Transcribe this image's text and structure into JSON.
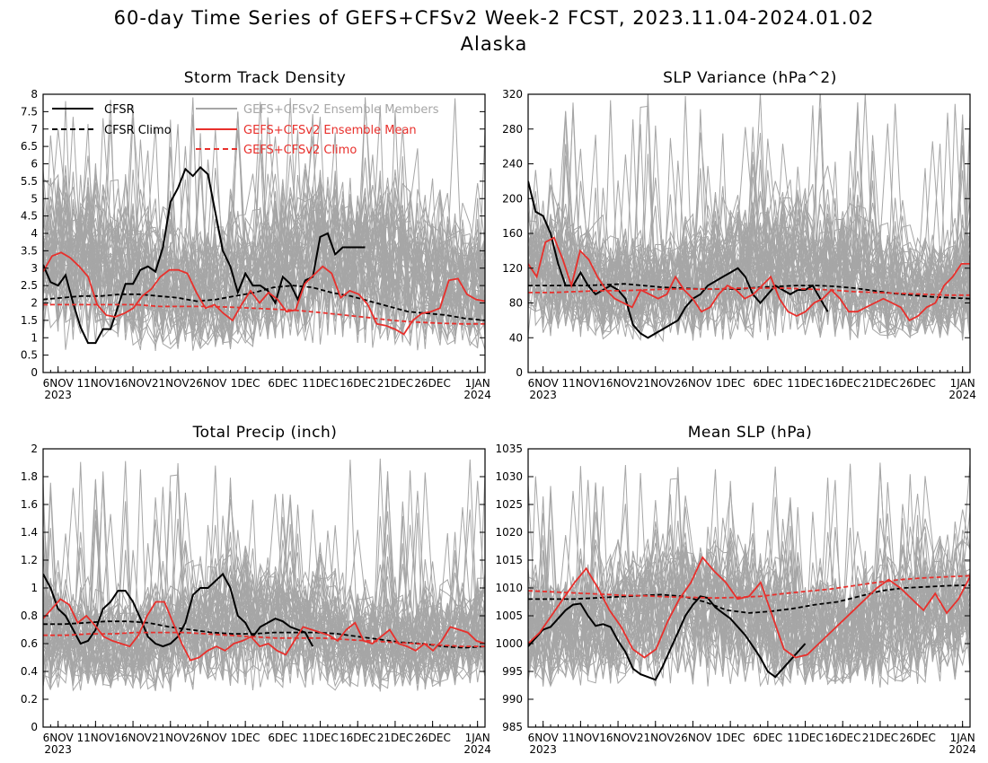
{
  "figure": {
    "title": "60-day Time Series of GEFS+CFSv2 Week-2 FCST, 2023.11.04-2024.01.02",
    "subtitle": "Alaska"
  },
  "colors": {
    "cfsr": "#000000",
    "members": "#a6a6a6",
    "mean": "#e8302c"
  },
  "legend": {
    "cfsr": "CFSR",
    "cfsr_climo": "CFSR Climo",
    "members": "GEFS+CFSv2 Ensemble Members",
    "mean": "GEFS+CFSv2 Ensemble Mean",
    "model_climo": "GEFS+CFSv2 Climo"
  },
  "x_ticks": [
    {
      "day": 2,
      "label": "6NOV",
      "sub": "2023"
    },
    {
      "day": 7,
      "label": "11NOV",
      "sub": ""
    },
    {
      "day": 12,
      "label": "16NOV",
      "sub": ""
    },
    {
      "day": 17,
      "label": "21NOV",
      "sub": ""
    },
    {
      "day": 22,
      "label": "26NOV",
      "sub": ""
    },
    {
      "day": 27,
      "label": "1DEC",
      "sub": ""
    },
    {
      "day": 32,
      "label": "6DEC",
      "sub": ""
    },
    {
      "day": 37,
      "label": "11DEC",
      "sub": ""
    },
    {
      "day": 42,
      "label": "16DEC",
      "sub": ""
    },
    {
      "day": 47,
      "label": "21DEC",
      "sub": ""
    },
    {
      "day": 52,
      "label": "26DEC",
      "sub": ""
    },
    {
      "day": 58,
      "label": "1JAN",
      "sub": "2024"
    }
  ],
  "chart_data": [
    {
      "type": "line",
      "title": "Storm Track Density",
      "x_start": "2023-11-04",
      "x_end": "2024-01-02",
      "ylim": [
        0,
        8
      ],
      "yticks": [
        "0",
        "0.5",
        "1",
        "1.5",
        "2",
        "2.5",
        "3",
        "3.5",
        "4",
        "4.5",
        "5",
        "5.5",
        "6",
        "6.5",
        "7",
        "7.5",
        "8"
      ],
      "member_band": {
        "low": 0.6,
        "high": 6.3,
        "peak": 8.0
      },
      "series": [
        {
          "name": "CFSR",
          "role": "cfsr",
          "dates": [
            "2023-11-04",
            "2023-11-05",
            "2023-11-06",
            "2023-11-07",
            "2023-11-08",
            "2023-11-09",
            "2023-11-10",
            "2023-11-11",
            "2023-11-12",
            "2023-11-13",
            "2023-11-14",
            "2023-11-15",
            "2023-11-16",
            "2023-11-17",
            "2023-11-18",
            "2023-11-19",
            "2023-11-20",
            "2023-11-21",
            "2023-11-22",
            "2023-11-23",
            "2023-11-24",
            "2023-11-25",
            "2023-11-26",
            "2023-11-27",
            "2023-11-28",
            "2023-11-29",
            "2023-11-30",
            "2023-12-01",
            "2023-12-02",
            "2023-12-03",
            "2023-12-04",
            "2023-12-05",
            "2023-12-06",
            "2023-12-07",
            "2023-12-08",
            "2023-12-09",
            "2023-12-10",
            "2023-12-11",
            "2023-12-12",
            "2023-12-13",
            "2023-12-14",
            "2023-12-15",
            "2023-12-16",
            "2023-12-17"
          ],
          "values": [
            3.1,
            2.6,
            2.5,
            2.8,
            2.0,
            1.3,
            0.85,
            0.85,
            1.25,
            1.25,
            1.9,
            2.55,
            2.55,
            2.95,
            3.05,
            2.9,
            3.6,
            4.9,
            5.3,
            5.85,
            5.65,
            5.9,
            5.7,
            4.6,
            3.5,
            3.05,
            2.3,
            2.85,
            2.5,
            2.5,
            2.35,
            2.0,
            2.75,
            2.55,
            2.1,
            2.65,
            2.75,
            3.9,
            4.0,
            3.4,
            3.6,
            3.6,
            3.6,
            3.6
          ]
        },
        {
          "name": "CFSR Climo",
          "role": "cfsr_climo",
          "values": [
            2.1,
            2.15,
            2.2,
            2.2,
            2.25,
            2.25,
            2.2,
            2.15,
            2.05,
            2.1,
            2.2,
            2.3,
            2.45,
            2.5,
            2.45,
            2.3,
            2.2,
            2.05,
            1.9,
            1.75,
            1.7,
            1.65,
            1.55,
            1.5
          ]
        },
        {
          "name": "GEFS+CFSv2 Ensemble Mean",
          "role": "mean",
          "values": [
            2.9,
            3.35,
            3.45,
            3.3,
            3.05,
            2.75,
            1.95,
            1.65,
            1.6,
            1.7,
            1.85,
            2.2,
            2.4,
            2.75,
            2.95,
            2.95,
            2.85,
            2.3,
            1.85,
            1.95,
            1.7,
            1.5,
            1.95,
            2.35,
            2.0,
            2.3,
            2.1,
            1.75,
            1.8,
            2.55,
            2.8,
            3.05,
            2.85,
            2.15,
            2.35,
            2.25,
            1.95,
            1.4,
            1.35,
            1.25,
            1.1,
            1.5,
            1.7,
            1.75,
            1.85,
            2.65,
            2.7,
            2.25,
            2.1,
            2.05
          ]
        },
        {
          "name": "GEFS+CFSv2 Climo",
          "role": "model_climo",
          "values": [
            1.95,
            1.95,
            1.95,
            1.95,
            1.95,
            1.9,
            1.9,
            1.9,
            1.88,
            1.85,
            1.82,
            1.78,
            1.72,
            1.65,
            1.58,
            1.5,
            1.45,
            1.42,
            1.4,
            1.4
          ]
        }
      ]
    },
    {
      "type": "line",
      "title": "SLP Variance (hPa^2)",
      "x_start": "2023-11-04",
      "x_end": "2024-01-02",
      "ylim": [
        0,
        320
      ],
      "yticks": [
        "0",
        "40",
        "80",
        "120",
        "160",
        "200",
        "240",
        "280",
        "320"
      ],
      "member_band": {
        "low": 35,
        "high": 230,
        "peak": 330
      },
      "series": [
        {
          "name": "CFSR",
          "role": "cfsr",
          "values": [
            220,
            185,
            180,
            160,
            125,
            100,
            100,
            115,
            100,
            90,
            95,
            100,
            95,
            85,
            55,
            45,
            40,
            45,
            50,
            55,
            60,
            75,
            85,
            90,
            100,
            105,
            110,
            115,
            120,
            110,
            90,
            80,
            90,
            100,
            95,
            90,
            95,
            95,
            100,
            85,
            70
          ]
        },
        {
          "name": "CFSR Climo",
          "role": "cfsr_climo",
          "values": [
            100,
            100,
            100,
            100,
            101,
            102,
            100,
            98,
            97,
            96,
            96,
            96,
            98,
            99,
            100,
            100,
            99,
            97,
            94,
            91,
            89,
            87,
            86,
            85
          ]
        },
        {
          "name": "GEFS+CFSv2 Ensemble Mean",
          "role": "mean",
          "values": [
            125,
            110,
            150,
            155,
            130,
            100,
            140,
            130,
            110,
            95,
            85,
            80,
            75,
            95,
            90,
            85,
            90,
            110,
            95,
            85,
            70,
            75,
            90,
            100,
            95,
            85,
            90,
            100,
            110,
            85,
            70,
            65,
            70,
            80,
            85,
            95,
            85,
            70,
            70,
            75,
            80,
            85,
            80,
            75,
            60,
            65,
            75,
            80,
            100,
            110,
            125,
            125
          ]
        },
        {
          "name": "GEFS+CFSv2 Climo",
          "role": "model_climo",
          "values": [
            92,
            92,
            93,
            94,
            94,
            95,
            96,
            96,
            96,
            97,
            97,
            97,
            96,
            95,
            93,
            92,
            91,
            90,
            89,
            89
          ]
        }
      ]
    },
    {
      "type": "line",
      "title": "Total Precip (inch)",
      "x_start": "2023-11-04",
      "x_end": "2024-01-02",
      "ylim": [
        0,
        2
      ],
      "yticks": [
        "0",
        "0.2",
        "0.4",
        "0.6",
        "0.8",
        "1",
        "1.2",
        "1.4",
        "1.6",
        "1.8",
        "2"
      ],
      "member_band": {
        "low": 0.25,
        "high": 1.35,
        "peak": 1.95
      },
      "series": [
        {
          "name": "CFSR",
          "role": "cfsr",
          "values": [
            1.1,
            1.0,
            0.85,
            0.8,
            0.7,
            0.6,
            0.62,
            0.7,
            0.85,
            0.9,
            0.98,
            0.98,
            0.9,
            0.78,
            0.65,
            0.6,
            0.58,
            0.6,
            0.65,
            0.75,
            0.95,
            1.0,
            1.0,
            1.05,
            1.1,
            1.0,
            0.8,
            0.75,
            0.65,
            0.72,
            0.75,
            0.78,
            0.76,
            0.72,
            0.7,
            0.68,
            0.58
          ]
        },
        {
          "name": "CFSR Climo",
          "role": "cfsr_climo",
          "values": [
            0.74,
            0.74,
            0.75,
            0.76,
            0.76,
            0.75,
            0.72,
            0.7,
            0.68,
            0.67,
            0.67,
            0.68,
            0.68,
            0.68,
            0.67,
            0.65,
            0.63,
            0.61,
            0.6,
            0.58,
            0.57,
            0.58
          ]
        },
        {
          "name": "GEFS+CFSv2 Ensemble Mean",
          "role": "mean",
          "values": [
            0.78,
            0.85,
            0.92,
            0.88,
            0.75,
            0.8,
            0.73,
            0.65,
            0.62,
            0.6,
            0.58,
            0.66,
            0.8,
            0.9,
            0.9,
            0.75,
            0.6,
            0.48,
            0.5,
            0.55,
            0.58,
            0.55,
            0.6,
            0.62,
            0.65,
            0.58,
            0.6,
            0.55,
            0.52,
            0.62,
            0.72,
            0.7,
            0.68,
            0.66,
            0.62,
            0.7,
            0.75,
            0.62,
            0.6,
            0.65,
            0.7,
            0.6,
            0.58,
            0.55,
            0.6,
            0.55,
            0.62,
            0.72,
            0.7,
            0.68,
            0.62,
            0.6
          ]
        },
        {
          "name": "GEFS+CFSv2 Climo",
          "role": "model_climo",
          "values": [
            0.66,
            0.66,
            0.67,
            0.67,
            0.68,
            0.68,
            0.68,
            0.67,
            0.66,
            0.65,
            0.64,
            0.64,
            0.64,
            0.63,
            0.62,
            0.61,
            0.6,
            0.59,
            0.58,
            0.58
          ]
        }
      ]
    },
    {
      "type": "line",
      "title": "Mean SLP (hPa)",
      "x_start": "2023-11-04",
      "x_end": "2024-01-02",
      "ylim": [
        985,
        1035
      ],
      "yticks": [
        "985",
        "990",
        "995",
        "1000",
        "1005",
        "1010",
        "1015",
        "1020",
        "1025",
        "1030",
        "1035"
      ],
      "member_band": {
        "low": 992,
        "high": 1024,
        "peak": 1033
      },
      "series": [
        {
          "name": "CFSR",
          "role": "cfsr",
          "values": [
            999.5,
            1001,
            1002.5,
            1003,
            1004.5,
            1006,
            1007,
            1007.2,
            1005,
            1003.2,
            1003.5,
            1003,
            1000.5,
            998.5,
            995.5,
            994.5,
            994,
            993.5,
            996,
            999,
            1002,
            1005,
            1007,
            1008.5,
            1008.2,
            1006.5,
            1005.5,
            1004.5,
            1003,
            1001.5,
            999.5,
            997.5,
            995,
            994,
            995.5,
            997,
            998.5,
            1000
          ]
        },
        {
          "name": "CFSR Climo",
          "role": "cfsr_climo",
          "values": [
            1008,
            1008,
            1008,
            1008.2,
            1008.4,
            1008.6,
            1008.8,
            1008.5,
            1007.5,
            1006,
            1005.5,
            1005.8,
            1006.3,
            1007,
            1007.5,
            1008.5,
            1009.5,
            1010,
            1010.2,
            1010.4,
            1010.5
          ]
        },
        {
          "name": "GEFS+CFSv2 Ensemble Mean",
          "role": "mean",
          "values": [
            1000,
            1002,
            1005,
            1008,
            1011,
            1013.5,
            1010,
            1006,
            1003,
            999,
            997.5,
            999,
            1004,
            1008,
            1011,
            1015.5,
            1013,
            1011,
            1008,
            1008.5,
            1011,
            1005,
            999,
            997.5,
            998,
            1000,
            1002,
            1004,
            1006,
            1008,
            1010,
            1011.5,
            1010,
            1008,
            1006,
            1009,
            1005.5,
            1008,
            1012
          ]
        },
        {
          "name": "GEFS+CFSv2 Climo",
          "role": "model_climo",
          "values": [
            1009.5,
            1009.3,
            1009.1,
            1008.9,
            1008.7,
            1008.6,
            1008.4,
            1008.3,
            1008.2,
            1008.3,
            1008.5,
            1009,
            1009.4,
            1009.8,
            1010.4,
            1011,
            1011.5,
            1011.8,
            1012,
            1012.2
          ]
        }
      ]
    }
  ]
}
